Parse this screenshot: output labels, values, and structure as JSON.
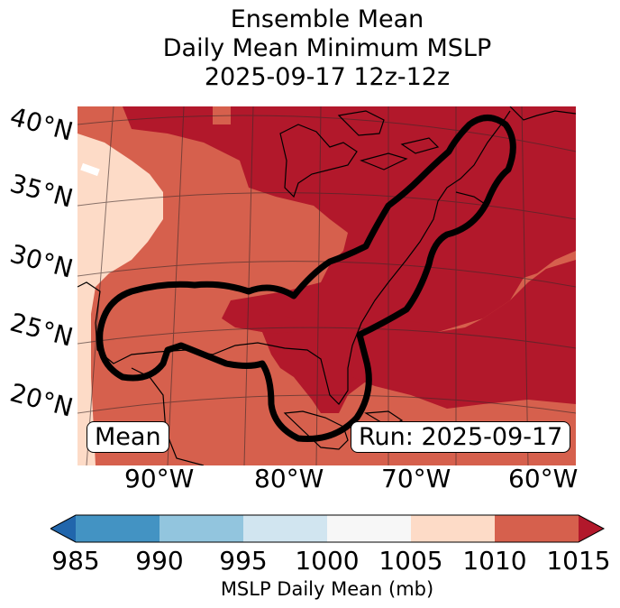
{
  "title": {
    "line1": "Ensemble Mean",
    "line2": "Daily Mean Minimum MSLP",
    "line3": "2025-09-17 12z-12z"
  },
  "map": {
    "lat_labels": [
      "40°N",
      "35°N",
      "30°N",
      "25°N",
      "20°N"
    ],
    "lon_labels": [
      "90°W",
      "80°W",
      "70°W",
      "60°W"
    ],
    "mean_label": "Mean",
    "run_label": "Run: 2025-09-17",
    "outline_description_value": "ensemble mean contour",
    "colors": {
      "c985": "#2166ac",
      "c990": "#4393c3",
      "c995": "#92c5de",
      "c1000": "#d1e5f0",
      "c1005": "#f7f7f7",
      "c1010": "#fddbc7",
      "c1015": "#d6604d",
      "cover": "#b2182b"
    }
  },
  "colorbar": {
    "ticks": [
      "985",
      "990",
      "995",
      "1000",
      "1005",
      "1010",
      "1015"
    ],
    "label": "MSLP Daily Mean (mb)"
  }
}
